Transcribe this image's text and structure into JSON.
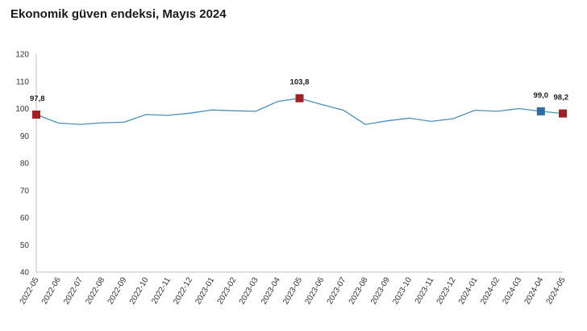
{
  "chart_data": {
    "type": "line",
    "title": "Ekonomik güven endeksi, Mayıs 2024",
    "xlabel": "",
    "ylabel": "",
    "ylim": [
      40,
      120
    ],
    "yticks": [
      40,
      50,
      60,
      70,
      80,
      90,
      100,
      110,
      120
    ],
    "grid": false,
    "legend": "none",
    "categories": [
      "2022-05",
      "2022-06",
      "2022-07",
      "2022-08",
      "2022-09",
      "2022-10",
      "2022-11",
      "2022-12",
      "2023-01",
      "2023-02",
      "2023-03",
      "2023-04",
      "2023-05",
      "2023-06",
      "2023-07",
      "2023-08",
      "2023-09",
      "2023-10",
      "2023-11",
      "2023-12",
      "2024-01",
      "2024-02",
      "2024-03",
      "2024-04",
      "2024-05"
    ],
    "series": [
      {
        "values": [
          97.8,
          94.7,
          94.2,
          94.8,
          95.0,
          97.8,
          97.5,
          98.3,
          99.5,
          99.2,
          99.0,
          102.6,
          103.8,
          101.5,
          99.4,
          94.2,
          95.5,
          96.5,
          95.3,
          96.3,
          99.4,
          99.0,
          100.0,
          99.0,
          98.2
        ],
        "color": "#4a90b8"
      }
    ],
    "highlighted_points": [
      {
        "category": "2022-05",
        "value": 97.8,
        "label": "97,8",
        "color": "#a31f24"
      },
      {
        "category": "2023-05",
        "value": 103.8,
        "label": "103,8",
        "color": "#a31f24"
      },
      {
        "category": "2024-04",
        "value": 99.0,
        "label": "99,0",
        "color": "#2e6da4"
      },
      {
        "category": "2024-05",
        "value": 98.2,
        "label": "98,2",
        "color": "#a31f24"
      }
    ]
  }
}
